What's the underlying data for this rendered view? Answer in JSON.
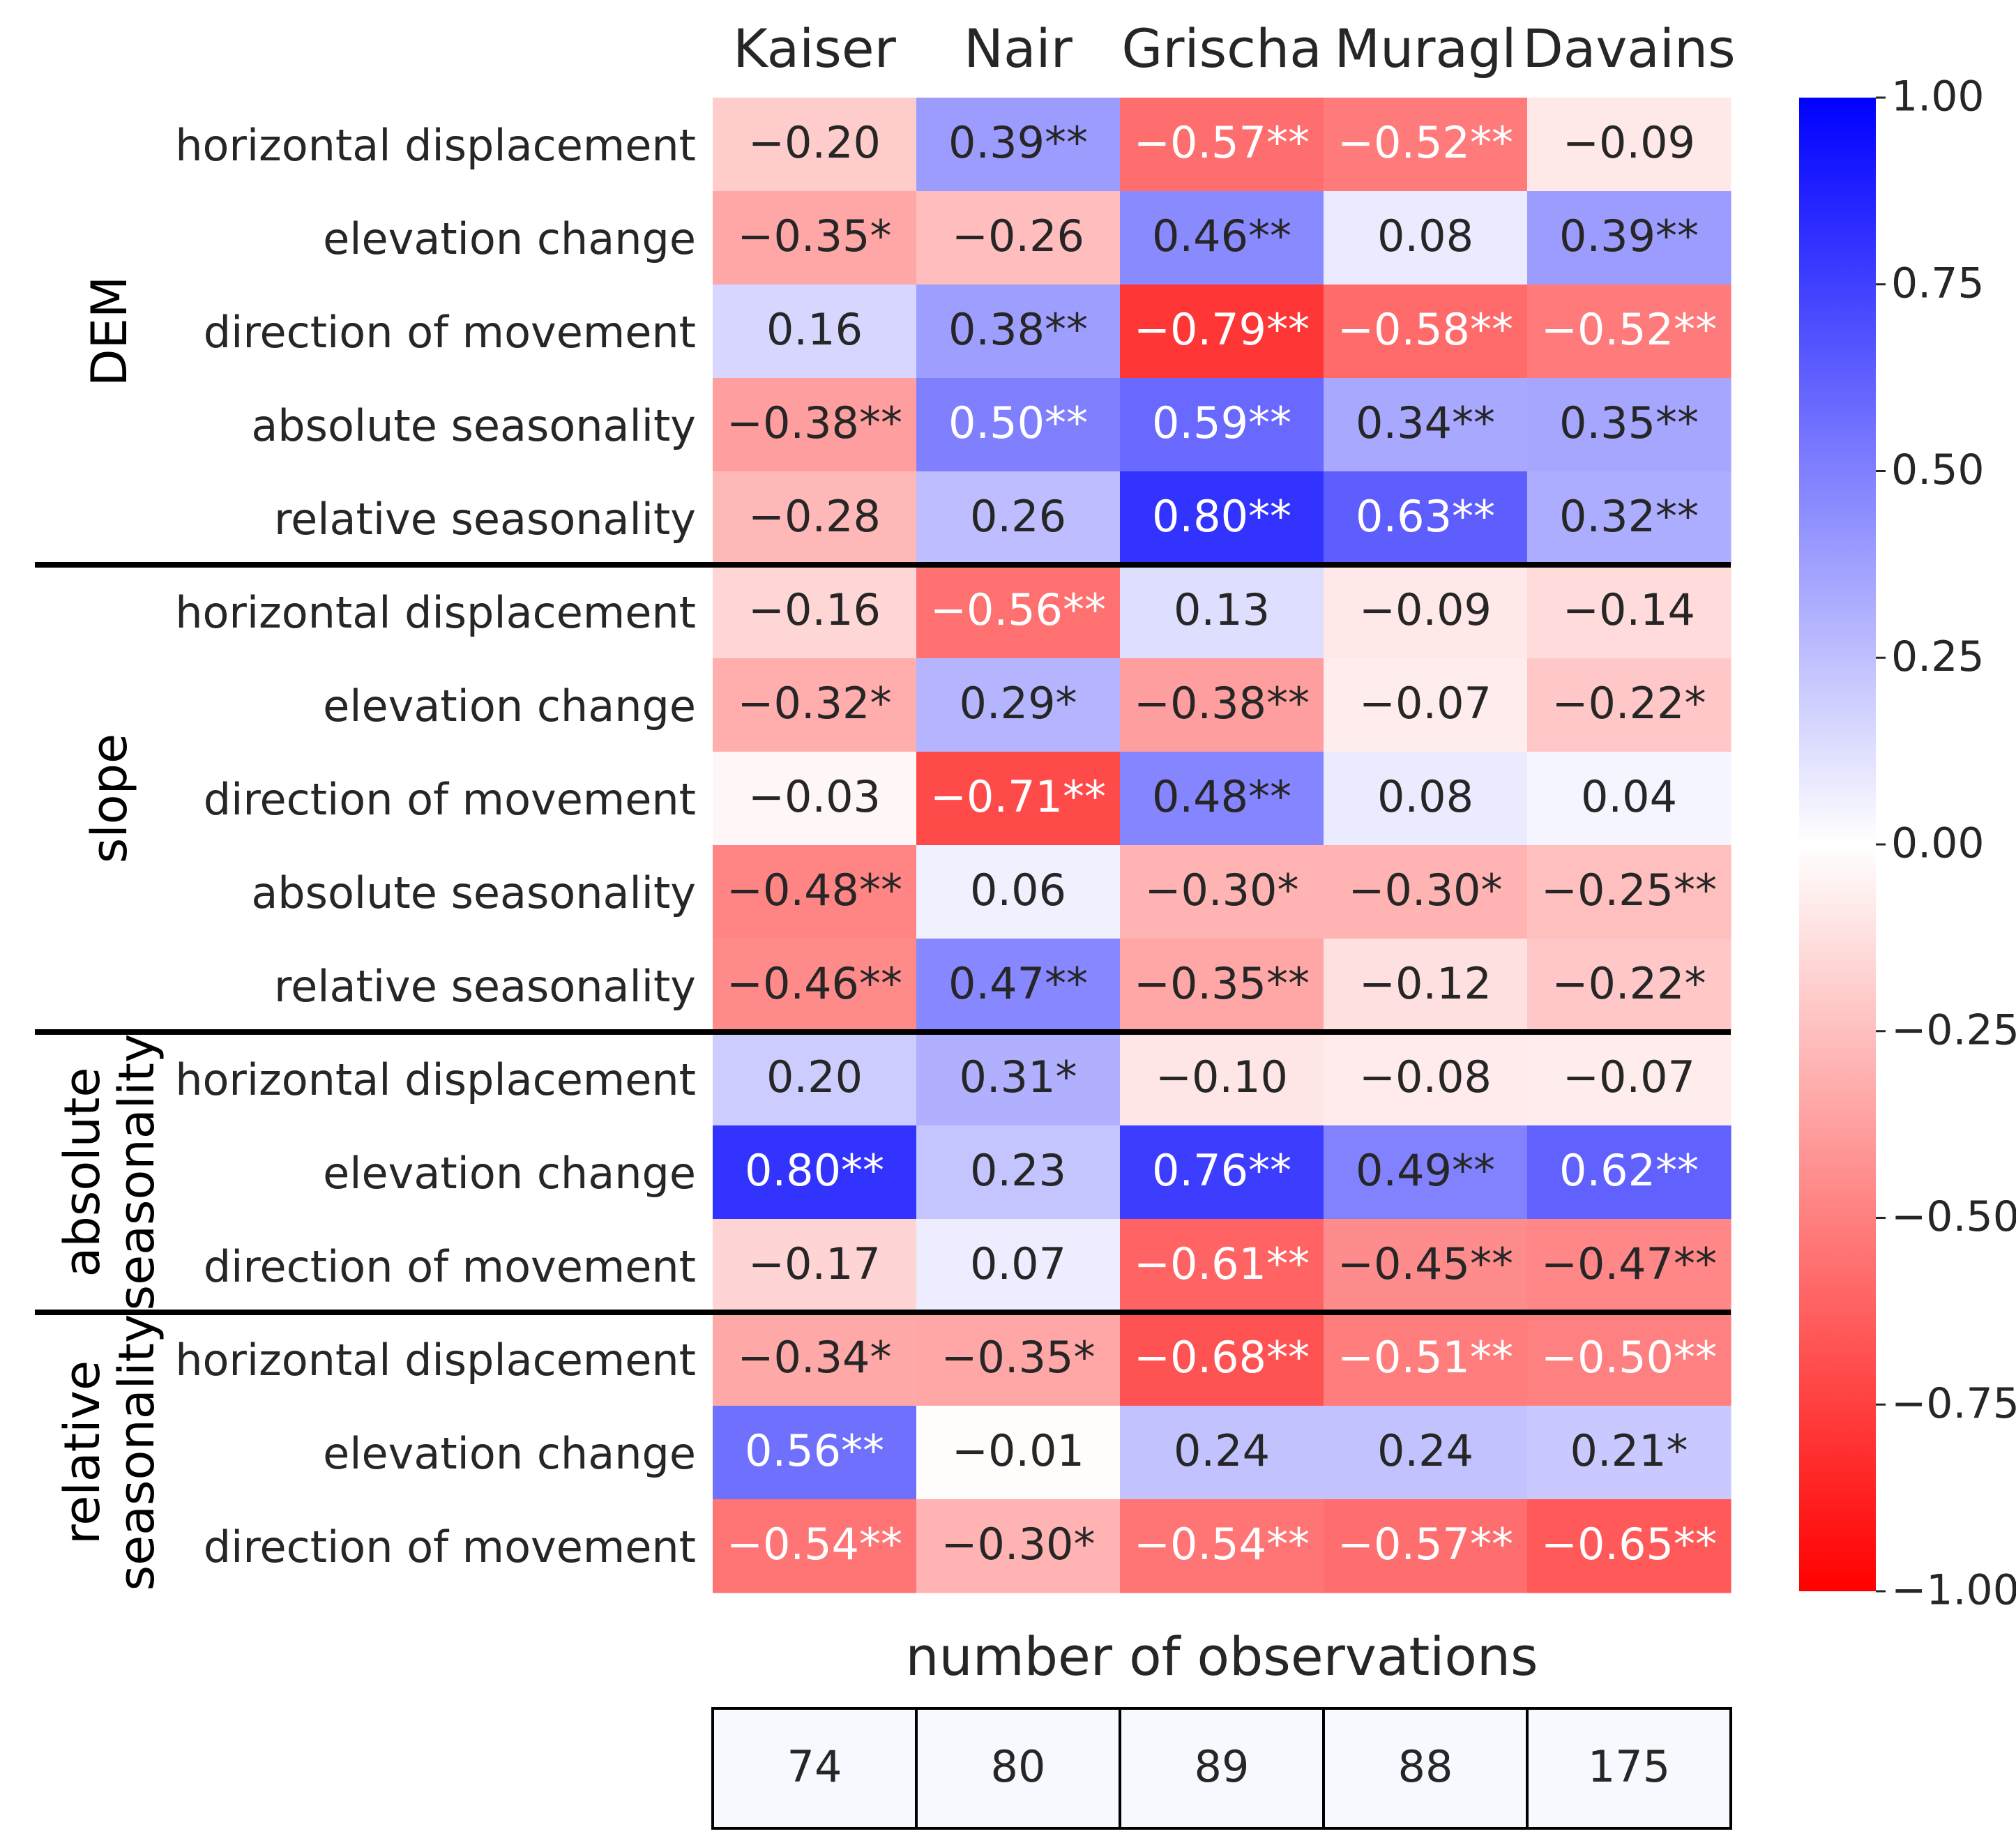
{
  "chart_data": {
    "type": "heatmap",
    "columns": [
      "Kaiser",
      "Nair",
      "Grischa",
      "Muragl",
      "Davains"
    ],
    "groups": [
      {
        "label_lines": [
          "DEM"
        ],
        "rows": [
          "horizontal displacement",
          "elevation change",
          "direction of movement",
          "absolute seasonality",
          "relative seasonality"
        ]
      },
      {
        "label_lines": [
          "slope"
        ],
        "rows": [
          "horizontal displacement",
          "elevation change",
          "direction of movement",
          "absolute seasonality",
          "relative seasonality"
        ]
      },
      {
        "label_lines": [
          "absolute",
          "seasonality"
        ],
        "rows": [
          "horizontal displacement",
          "elevation change",
          "direction of movement"
        ]
      },
      {
        "label_lines": [
          "relative",
          "seasonality"
        ],
        "rows": [
          "horizontal displacement",
          "elevation change",
          "direction of movement"
        ]
      }
    ],
    "values": [
      [
        -0.2,
        0.39,
        -0.57,
        -0.52,
        -0.09
      ],
      [
        -0.35,
        -0.26,
        0.46,
        0.08,
        0.39
      ],
      [
        0.16,
        0.38,
        -0.79,
        -0.58,
        -0.52
      ],
      [
        -0.38,
        0.5,
        0.59,
        0.34,
        0.35
      ],
      [
        -0.28,
        0.26,
        0.8,
        0.63,
        0.32
      ],
      [
        -0.16,
        -0.56,
        0.13,
        -0.09,
        -0.14
      ],
      [
        -0.32,
        0.29,
        -0.38,
        -0.07,
        -0.22
      ],
      [
        -0.03,
        -0.71,
        0.48,
        0.08,
        0.04
      ],
      [
        -0.48,
        0.06,
        -0.3,
        -0.3,
        -0.25
      ],
      [
        -0.46,
        0.47,
        -0.35,
        -0.12,
        -0.22
      ],
      [
        0.2,
        0.31,
        -0.1,
        -0.08,
        -0.07
      ],
      [
        0.8,
        0.23,
        0.76,
        0.49,
        0.62
      ],
      [
        -0.17,
        0.07,
        -0.61,
        -0.45,
        -0.47
      ],
      [
        -0.34,
        -0.35,
        -0.68,
        -0.51,
        -0.5
      ],
      [
        0.56,
        -0.01,
        0.24,
        0.24,
        0.21
      ],
      [
        -0.54,
        -0.3,
        -0.54,
        -0.57,
        -0.65
      ]
    ],
    "cell_labels": [
      [
        "−0.20",
        "0.39**",
        "−0.57**",
        "−0.52**",
        "−0.09"
      ],
      [
        "−0.35*",
        "−0.26",
        "0.46**",
        "0.08",
        "0.39**"
      ],
      [
        "0.16",
        "0.38**",
        "−0.79**",
        "−0.58**",
        "−0.52**"
      ],
      [
        "−0.38**",
        "0.50**",
        "0.59**",
        "0.34**",
        "0.35**"
      ],
      [
        "−0.28",
        "0.26",
        "0.80**",
        "0.63**",
        "0.32**"
      ],
      [
        "−0.16",
        "−0.56**",
        "0.13",
        "−0.09",
        "−0.14"
      ],
      [
        "−0.32*",
        "0.29*",
        "−0.38**",
        "−0.07",
        "−0.22*"
      ],
      [
        "−0.03",
        "−0.71**",
        "0.48**",
        "0.08",
        "0.04"
      ],
      [
        "−0.48**",
        "0.06",
        "−0.30*",
        "−0.30*",
        "−0.25**"
      ],
      [
        "−0.46**",
        "0.47**",
        "−0.35**",
        "−0.12",
        "−0.22*"
      ],
      [
        "0.20",
        "0.31*",
        "−0.10",
        "−0.08",
        "−0.07"
      ],
      [
        "0.80**",
        "0.23",
        "0.76**",
        "0.49**",
        "0.62**"
      ],
      [
        "−0.17",
        "0.07",
        "−0.61**",
        "−0.45**",
        "−0.47**"
      ],
      [
        "−0.34*",
        "−0.35*",
        "−0.68**",
        "−0.51**",
        "−0.50**"
      ],
      [
        "0.56**",
        "−0.01",
        "0.24",
        "0.24",
        "0.21*"
      ],
      [
        "−0.54**",
        "−0.30*",
        "−0.54**",
        "−0.57**",
        "−0.65**"
      ]
    ],
    "colorbar": {
      "vmin": -1.0,
      "vmax": 1.0,
      "ticks": [
        1.0,
        0.75,
        0.5,
        0.25,
        0.0,
        -0.25,
        -0.5,
        -0.75,
        -1.0
      ],
      "tick_labels": [
        "1.00",
        "0.75",
        "0.50",
        "0.25",
        "0.00",
        "−0.25",
        "−0.50",
        "−0.75",
        "−1.00"
      ],
      "colormap": "bwr",
      "color_max": "#0000ff",
      "color_mid": "#ffffff",
      "color_min": "#ff0000"
    },
    "observations": {
      "title": "number of observations",
      "values": [
        74,
        80,
        89,
        88,
        175
      ],
      "cell_color": "#f7f9ff"
    }
  }
}
